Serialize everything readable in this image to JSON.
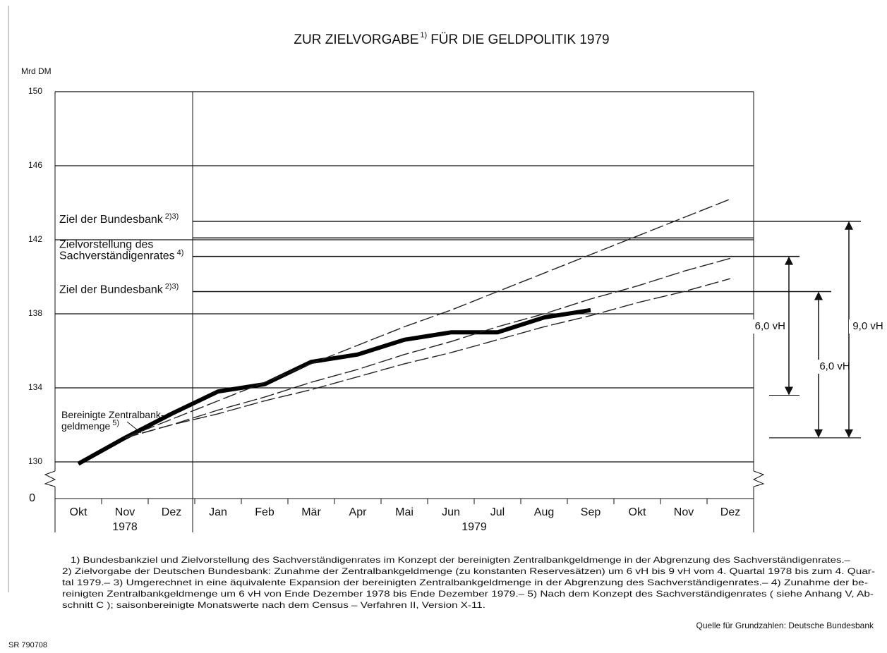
{
  "chart_data": {
    "type": "line",
    "title": "ZUR ZIELVORGABE",
    "title_note": "1)",
    "title_end": "FÜR DIE GELDPOLITIK 1979",
    "y_label": "Mrd DM",
    "categories": [
      "Okt",
      "Nov",
      "Dez",
      "Jan",
      "Feb",
      "Mär",
      "Apr",
      "Mai",
      "Jun",
      "Jul",
      "Aug",
      "Sep",
      "Okt",
      "Nov",
      "Dez"
    ],
    "years": [
      {
        "label": "1978",
        "categories": 3
      },
      {
        "label": "1979",
        "categories": 12
      }
    ],
    "ylim": [
      130,
      150
    ],
    "yticks": [
      130,
      134,
      138,
      142,
      146,
      150
    ],
    "axis_break_label": "0",
    "series": [
      {
        "name_lines": [
          "Bereinigte Zentralbank-",
          "geldmenge"
        ],
        "note": "5)",
        "color": "#000000",
        "style": "thick",
        "values": [
          129.9,
          131.3,
          132.6,
          133.8,
          134.2,
          135.4,
          135.8,
          136.6,
          137.0,
          137.0,
          137.8,
          138.2,
          null,
          null,
          null
        ]
      },
      {
        "color": "#222222",
        "style": "dashed",
        "values": [
          null,
          131.3,
          132.3,
          133.3,
          134.3,
          135.3,
          136.3,
          137.3,
          138.2,
          139.2,
          140.2,
          141.2,
          142.2,
          143.2,
          144.2
        ]
      },
      {
        "color": "#222222",
        "style": "dashed",
        "values": [
          null,
          131.3,
          132.0,
          132.8,
          133.5,
          134.3,
          135.0,
          135.8,
          136.5,
          137.3,
          138.0,
          138.8,
          139.5,
          140.3,
          141.0
        ]
      },
      {
        "color": "#222222",
        "style": "dashed",
        "values": [
          null,
          131.3,
          132.0,
          132.6,
          133.3,
          133.9,
          134.6,
          135.3,
          135.9,
          136.6,
          137.3,
          137.9,
          138.6,
          139.2,
          139.9
        ]
      }
    ],
    "reference_lines": [
      {
        "value": 143.0,
        "label_lines": [
          "Ziel der Bundesbank"
        ],
        "note": "2)3)"
      },
      {
        "value": 142.1
      },
      {
        "value": 141.1,
        "label_lines": [
          "Zielvorstellung des",
          "Sachverständigenrates"
        ],
        "note": "4)"
      },
      {
        "value": 139.2,
        "label_lines": [
          "Ziel der Bundesbank"
        ],
        "note": "2)3)"
      }
    ],
    "spans": [
      {
        "from": 141.1,
        "to": 133.6,
        "label": "6,0 vH"
      },
      {
        "from": 139.2,
        "to": 131.3,
        "label": "6,0 vH"
      },
      {
        "from": 143.0,
        "to": 131.3,
        "label": "9,0 vH"
      }
    ],
    "footnotes": [
      "1) Bundesbankziel und Zielvorstellung des Sachverständigenrates im Konzept der bereinigten Zentralbankgeldmenge in der Abgrenzung des Sachverständigenrates.–",
      "2) Zielvorgabe der Deutschen Bundesbank: Zunahme der Zentralbankgeldmenge (zu konstanten Reservesätzen) um 6 vH bis 9 vH vom 4. Quartal 1978 bis zum 4. Quar-",
      "tal 1979.– 3) Umgerechnet in eine äquivalente Expansion der bereinigten Zentralbankgeldmenge in der Abgrenzung des Sachverständigenrates.– 4) Zunahme der be-",
      "reinigten Zentralbankgeldmenge um 6 vH von Ende Dezember 1978 bis Ende Dezember 1979.– 5) Nach dem Konzept des Sachverständigenrates ( siehe Anhang V, Ab-",
      "schnitt C ); saisonbereinigte Monatswerte nach dem Census – Verfahren II, Version X-11."
    ],
    "source": "Quelle für Grundzahlen: Deutsche Bundesbank",
    "code": "SR 790708"
  }
}
